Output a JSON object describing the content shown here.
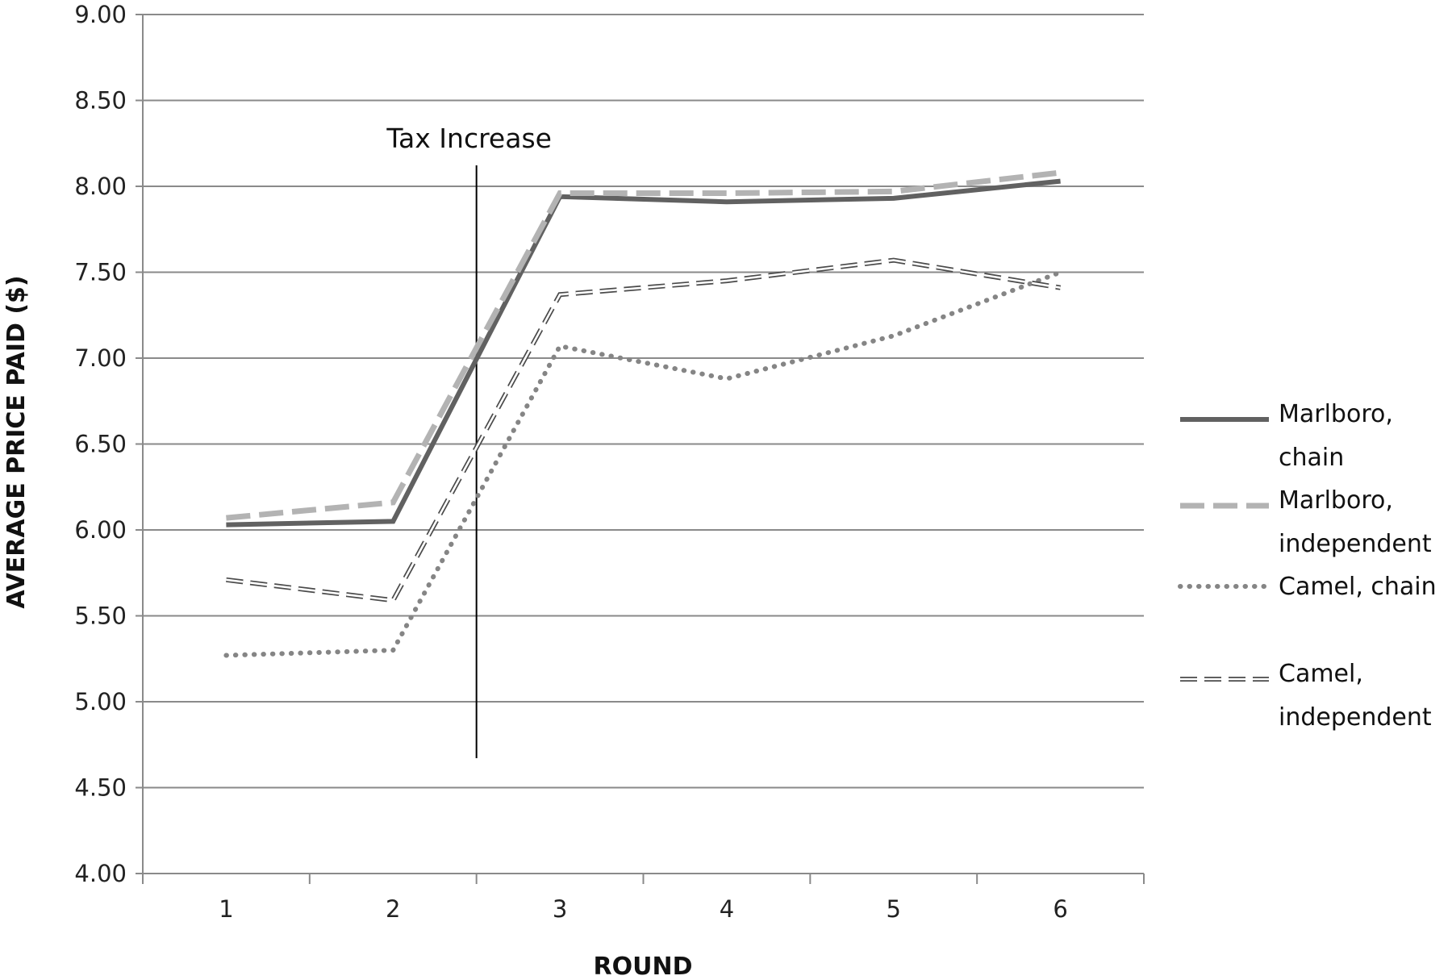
{
  "chart_data": {
    "type": "line",
    "title": "",
    "xlabel": "ROUND",
    "ylabel": "AVERAGE PRICE PAID ($)",
    "x": [
      1,
      2,
      3,
      4,
      5,
      6
    ],
    "x_tick_labels": [
      "1",
      "2",
      "3",
      "4",
      "5",
      "6"
    ],
    "ylim": [
      4.0,
      9.0
    ],
    "y_ticks": [
      4.0,
      4.5,
      5.0,
      5.5,
      6.0,
      6.5,
      7.0,
      7.5,
      8.0,
      8.5,
      9.0
    ],
    "y_tick_labels": [
      "4.00",
      "4.50",
      "5.00",
      "5.50",
      "6.00",
      "6.50",
      "7.00",
      "7.50",
      "8.00",
      "8.50",
      "9.00"
    ],
    "grid": "horizontal",
    "legend_position": "right",
    "annotation": {
      "label": "Tax Increase",
      "x": 2.5
    },
    "series": [
      {
        "name": "Marlboro, chain",
        "name_lines": [
          "Marlboro,",
          "chain"
        ],
        "values": [
          6.03,
          6.05,
          7.94,
          7.91,
          7.93,
          8.03
        ],
        "style": "solid",
        "color": "#616161"
      },
      {
        "name": "Marlboro, independent",
        "name_lines": [
          "Marlboro,",
          "independent"
        ],
        "values": [
          6.07,
          6.16,
          7.96,
          7.96,
          7.97,
          8.08
        ],
        "style": "long-dash",
        "color": "#b3b3b3"
      },
      {
        "name": "Camel, chain",
        "name_lines": [
          "Camel, chain"
        ],
        "values": [
          5.27,
          5.3,
          7.07,
          6.88,
          7.13,
          7.5
        ],
        "style": "dotted",
        "color": "#858585"
      },
      {
        "name": "Camel, independent",
        "name_lines": [
          "Camel,",
          "independent"
        ],
        "values": [
          5.71,
          5.59,
          7.37,
          7.45,
          7.57,
          7.41
        ],
        "style": "hollow-dash",
        "color": "#4a4a4a"
      }
    ]
  }
}
